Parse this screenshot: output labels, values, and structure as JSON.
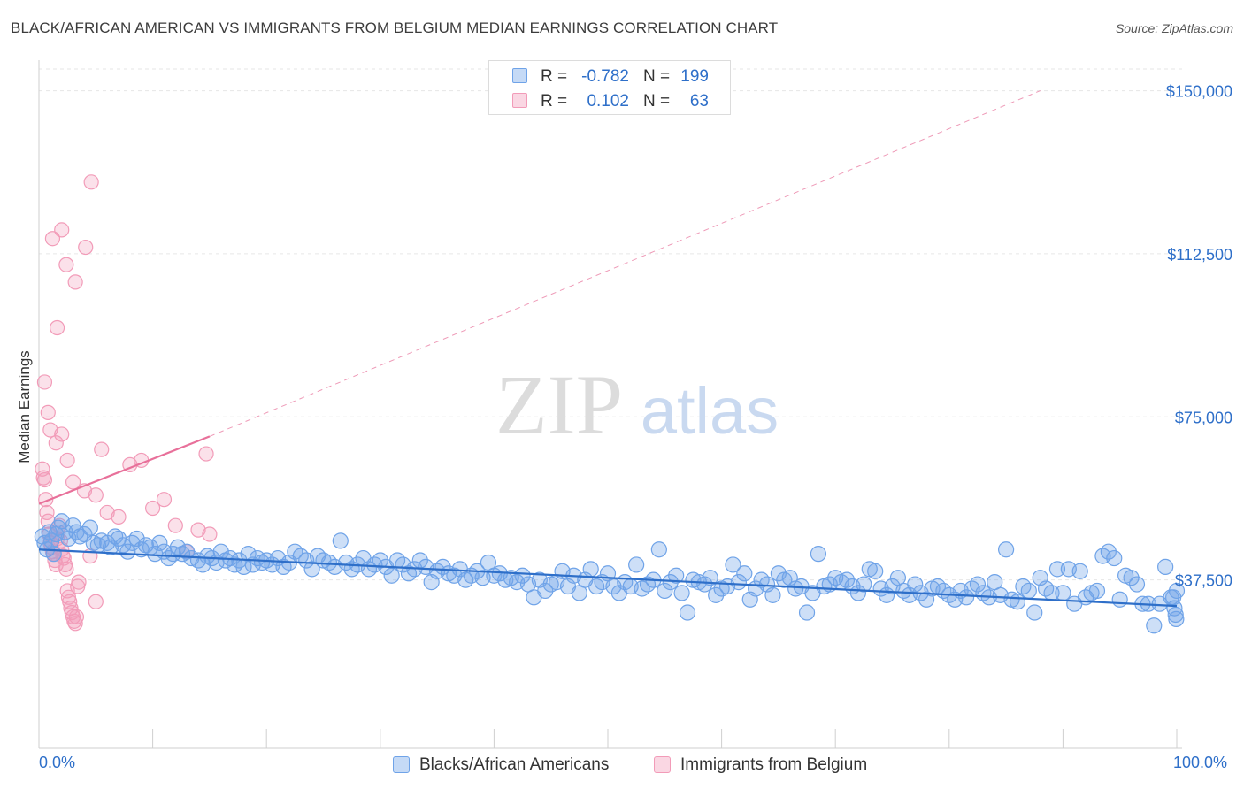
{
  "header": {
    "title": "BLACK/AFRICAN AMERICAN VS IMMIGRANTS FROM BELGIUM MEDIAN EARNINGS CORRELATION CHART",
    "source": "Source: ZipAtlas.com"
  },
  "watermark": {
    "zip": "ZIP",
    "atlas": "atlas"
  },
  "stats": [
    {
      "r_label": "R =",
      "r_value": "-0.782",
      "n_label": "N =",
      "n_value": "199",
      "color": "#6fa3e8"
    },
    {
      "r_label": "R =",
      "r_value": "0.102",
      "n_label": "N =",
      "n_value": "63",
      "color": "#f29bb8"
    }
  ],
  "legend": [
    {
      "label": "Blacks/African Americans",
      "color": "#6fa3e8"
    },
    {
      "label": "Immigrants from Belgium",
      "color": "#f29bb8"
    }
  ],
  "colors": {
    "blue_fill": "rgba(111,163,232,0.35)",
    "blue_stroke": "#6fa3e8",
    "blue_line": "#2e6fc9",
    "pink_fill": "rgba(242,155,184,0.30)",
    "pink_stroke": "#f29bb8",
    "pink_line": "#e8709a",
    "axis_text": "#2e6fc9",
    "grid": "#e6e6e6"
  },
  "chart_data": {
    "type": "scatter",
    "title": "BLACK/AFRICAN AMERICAN VS IMMIGRANTS FROM BELGIUM MEDIAN EARNINGS CORRELATION CHART",
    "xlabel": "",
    "ylabel": "Median Earnings",
    "xlim": [
      0,
      100
    ],
    "ylim": [
      0,
      155000
    ],
    "x_tick_labels": [
      "0.0%",
      "100.0%"
    ],
    "y_ticks": [
      37500,
      75000,
      112500,
      150000
    ],
    "y_tick_labels": [
      "$37,500",
      "$75,000",
      "$112,500",
      "$150,000"
    ],
    "grid": true,
    "series": [
      {
        "name": "Blacks/African Americans",
        "trend": {
          "x": [
            0,
            100
          ],
          "y": [
            44500,
            31500
          ],
          "style": "solid"
        },
        "points": [
          [
            0.3,
            47500
          ],
          [
            0.5,
            46000
          ],
          [
            0.7,
            44500
          ],
          [
            0.9,
            48500
          ],
          [
            1.1,
            46500
          ],
          [
            1.3,
            43500
          ],
          [
            1.5,
            48000
          ],
          [
            1.7,
            49500
          ],
          [
            2,
            51000
          ],
          [
            2.3,
            48500
          ],
          [
            2.6,
            47000
          ],
          [
            3,
            50000
          ],
          [
            3.3,
            48500
          ],
          [
            3.6,
            47500
          ],
          [
            4,
            48000
          ],
          [
            4.5,
            49500
          ],
          [
            4.8,
            46000
          ],
          [
            5.2,
            45500
          ],
          [
            5.5,
            46500
          ],
          [
            6,
            46000
          ],
          [
            6.3,
            45000
          ],
          [
            6.7,
            47500
          ],
          [
            7,
            47000
          ],
          [
            7.4,
            45500
          ],
          [
            7.8,
            44000
          ],
          [
            8.2,
            46000
          ],
          [
            8.6,
            47000
          ],
          [
            9,
            44500
          ],
          [
            9.4,
            45500
          ],
          [
            9.8,
            45000
          ],
          [
            10.2,
            43500
          ],
          [
            10.6,
            46000
          ],
          [
            11,
            44000
          ],
          [
            11.4,
            42500
          ],
          [
            11.8,
            43500
          ],
          [
            12.2,
            45000
          ],
          [
            12.6,
            43500
          ],
          [
            13,
            44000
          ],
          [
            13.4,
            42500
          ],
          [
            14,
            42000
          ],
          [
            14.4,
            41000
          ],
          [
            14.8,
            43000
          ],
          [
            15.2,
            42500
          ],
          [
            15.6,
            41500
          ],
          [
            16,
            44000
          ],
          [
            16.4,
            42000
          ],
          [
            16.8,
            42500
          ],
          [
            17.2,
            41000
          ],
          [
            17.6,
            42000
          ],
          [
            18,
            40500
          ],
          [
            18.4,
            43500
          ],
          [
            18.8,
            41000
          ],
          [
            19.2,
            42500
          ],
          [
            19.6,
            41500
          ],
          [
            20,
            42000
          ],
          [
            20.5,
            41000
          ],
          [
            21,
            42500
          ],
          [
            21.5,
            40500
          ],
          [
            22,
            41500
          ],
          [
            22.5,
            44000
          ],
          [
            23,
            43000
          ],
          [
            23.5,
            42000
          ],
          [
            24,
            40000
          ],
          [
            24.5,
            43000
          ],
          [
            25,
            42000
          ],
          [
            25.5,
            41500
          ],
          [
            26,
            40500
          ],
          [
            26.5,
            46500
          ],
          [
            27,
            41500
          ],
          [
            27.5,
            40000
          ],
          [
            28,
            41000
          ],
          [
            28.5,
            42500
          ],
          [
            29,
            40000
          ],
          [
            29.5,
            41000
          ],
          [
            30,
            42000
          ],
          [
            30.5,
            40500
          ],
          [
            31,
            38500
          ],
          [
            31.5,
            42000
          ],
          [
            32,
            41000
          ],
          [
            32.5,
            39000
          ],
          [
            33,
            40000
          ],
          [
            33.5,
            42000
          ],
          [
            34,
            40500
          ],
          [
            34.5,
            37000
          ],
          [
            35,
            39500
          ],
          [
            35.5,
            40500
          ],
          [
            36,
            39000
          ],
          [
            36.5,
            38500
          ],
          [
            37,
            40000
          ],
          [
            37.5,
            37500
          ],
          [
            38,
            38500
          ],
          [
            38.5,
            39500
          ],
          [
            39,
            38000
          ],
          [
            39.5,
            41500
          ],
          [
            40,
            38500
          ],
          [
            40.5,
            39000
          ],
          [
            41,
            37500
          ],
          [
            41.5,
            38000
          ],
          [
            42,
            37000
          ],
          [
            42.5,
            38500
          ],
          [
            43,
            36500
          ],
          [
            43.5,
            33500
          ],
          [
            44,
            37500
          ],
          [
            44.5,
            35000
          ],
          [
            45,
            36500
          ],
          [
            45.5,
            37000
          ],
          [
            46,
            39500
          ],
          [
            46.5,
            36000
          ],
          [
            47,
            38500
          ],
          [
            47.5,
            34500
          ],
          [
            48,
            37500
          ],
          [
            48.5,
            40000
          ],
          [
            49,
            36000
          ],
          [
            49.5,
            37000
          ],
          [
            50,
            39000
          ],
          [
            50.5,
            36000
          ],
          [
            51,
            34500
          ],
          [
            51.5,
            37000
          ],
          [
            52,
            36000
          ],
          [
            52.5,
            41000
          ],
          [
            53,
            35500
          ],
          [
            53.5,
            36500
          ],
          [
            54,
            37500
          ],
          [
            54.5,
            44500
          ],
          [
            55,
            35000
          ],
          [
            55.5,
            37000
          ],
          [
            56,
            38500
          ],
          [
            56.5,
            34500
          ],
          [
            57,
            30000
          ],
          [
            57.5,
            37500
          ],
          [
            58,
            37000
          ],
          [
            58.5,
            36500
          ],
          [
            59,
            38000
          ],
          [
            59.5,
            34000
          ],
          [
            60,
            35500
          ],
          [
            60.5,
            36000
          ],
          [
            61,
            41000
          ],
          [
            61.5,
            37000
          ],
          [
            62,
            39000
          ],
          [
            62.5,
            33000
          ],
          [
            63,
            35500
          ],
          [
            63.5,
            37500
          ],
          [
            64,
            36500
          ],
          [
            64.5,
            34000
          ],
          [
            65,
            39000
          ],
          [
            65.5,
            37500
          ],
          [
            66,
            38000
          ],
          [
            66.5,
            35500
          ],
          [
            67,
            36000
          ],
          [
            67.5,
            30000
          ],
          [
            68,
            34500
          ],
          [
            68.5,
            43500
          ],
          [
            69,
            36000
          ],
          [
            69.5,
            36500
          ],
          [
            70,
            38000
          ],
          [
            70.5,
            37000
          ],
          [
            71,
            37500
          ],
          [
            71.5,
            36000
          ],
          [
            72,
            34500
          ],
          [
            72.5,
            36500
          ],
          [
            73,
            40000
          ],
          [
            73.5,
            39500
          ],
          [
            74,
            35500
          ],
          [
            74.5,
            34000
          ],
          [
            75,
            36000
          ],
          [
            75.5,
            38000
          ],
          [
            76,
            35000
          ],
          [
            76.5,
            34000
          ],
          [
            77,
            36500
          ],
          [
            77.5,
            34500
          ],
          [
            78,
            33000
          ],
          [
            78.5,
            35500
          ],
          [
            79,
            36000
          ],
          [
            79.5,
            35000
          ],
          [
            80,
            34000
          ],
          [
            80.5,
            33000
          ],
          [
            81,
            35000
          ],
          [
            81.5,
            33500
          ],
          [
            82,
            35500
          ],
          [
            82.5,
            36500
          ],
          [
            83,
            34500
          ],
          [
            83.5,
            33500
          ],
          [
            84,
            37000
          ],
          [
            84.5,
            34000
          ],
          [
            85,
            44500
          ],
          [
            85.5,
            33000
          ],
          [
            86,
            32500
          ],
          [
            86.5,
            36000
          ],
          [
            87,
            35000
          ],
          [
            87.5,
            30000
          ],
          [
            88,
            38000
          ],
          [
            88.5,
            35500
          ],
          [
            89,
            34500
          ],
          [
            89.5,
            40000
          ],
          [
            90,
            34500
          ],
          [
            90.5,
            40000
          ],
          [
            91,
            32000
          ],
          [
            91.5,
            39500
          ],
          [
            92,
            33500
          ],
          [
            92.5,
            34500
          ],
          [
            93,
            35000
          ],
          [
            93.5,
            43000
          ],
          [
            94,
            44000
          ],
          [
            94.5,
            42500
          ],
          [
            95,
            33000
          ],
          [
            95.5,
            38500
          ],
          [
            96,
            38000
          ],
          [
            96.5,
            36500
          ],
          [
            97,
            32000
          ],
          [
            97.5,
            32000
          ],
          [
            98,
            27000
          ],
          [
            98.5,
            32000
          ],
          [
            99,
            40500
          ],
          [
            99.5,
            33500
          ],
          [
            99.7,
            33500
          ],
          [
            99.8,
            31000
          ],
          [
            99.9,
            29500
          ],
          [
            99.95,
            28500
          ],
          [
            100,
            35000
          ]
        ]
      },
      {
        "name": "Immigrants from Belgium",
        "trend": {
          "x": [
            0,
            15
          ],
          "y": [
            55000,
            70500
          ],
          "style": "solid",
          "dashed_extension_to": [
            88,
            150000
          ]
        },
        "points": [
          [
            0.3,
            63000
          ],
          [
            0.4,
            61000
          ],
          [
            0.5,
            60500
          ],
          [
            0.6,
            56000
          ],
          [
            0.7,
            53000
          ],
          [
            0.8,
            51000
          ],
          [
            0.9,
            48000
          ],
          [
            1,
            46000
          ],
          [
            1.1,
            45000
          ],
          [
            1.2,
            44000
          ],
          [
            1.3,
            43500
          ],
          [
            1.4,
            42000
          ],
          [
            1.5,
            41000
          ],
          [
            1.6,
            47000
          ],
          [
            1.7,
            48500
          ],
          [
            1.8,
            50000
          ],
          [
            1.9,
            46500
          ],
          [
            2,
            44500
          ],
          [
            2.1,
            43000
          ],
          [
            2.2,
            42500
          ],
          [
            2.3,
            41000
          ],
          [
            2.4,
            40000
          ],
          [
            2.5,
            35000
          ],
          [
            2.6,
            33500
          ],
          [
            2.7,
            32500
          ],
          [
            2.8,
            31000
          ],
          [
            2.9,
            30000
          ],
          [
            3,
            29000
          ],
          [
            3.1,
            28000
          ],
          [
            3.2,
            27500
          ],
          [
            3.3,
            29000
          ],
          [
            3.4,
            36000
          ],
          [
            3.5,
            37000
          ],
          [
            0.5,
            83000
          ],
          [
            0.8,
            76000
          ],
          [
            1,
            72000
          ],
          [
            1.5,
            69000
          ],
          [
            2,
            71000
          ],
          [
            2.5,
            65000
          ],
          [
            3,
            60000
          ],
          [
            4,
            58000
          ],
          [
            5,
            57000
          ],
          [
            6,
            53000
          ],
          [
            7,
            52000
          ],
          [
            8,
            64000
          ],
          [
            9,
            65000
          ],
          [
            10,
            54000
          ],
          [
            11,
            56000
          ],
          [
            12,
            50000
          ],
          [
            13,
            44000
          ],
          [
            14,
            49000
          ],
          [
            15,
            48000
          ],
          [
            1.2,
            116000
          ],
          [
            2,
            118000
          ],
          [
            2.4,
            110000
          ],
          [
            3.2,
            106000
          ],
          [
            4.1,
            114000
          ],
          [
            4.6,
            129000
          ],
          [
            1.6,
            95500
          ],
          [
            5.5,
            67500
          ],
          [
            14.7,
            66500
          ],
          [
            4.5,
            43000
          ],
          [
            5,
            32500
          ]
        ]
      }
    ]
  }
}
